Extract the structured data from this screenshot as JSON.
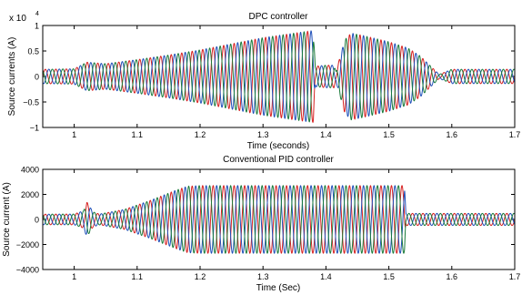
{
  "chart_data": [
    {
      "type": "line",
      "title": "DPC controller",
      "xlabel": "Time (seconds)",
      "ylabel": "Source currents (A)",
      "y_multiplier_label": "x 10",
      "y_multiplier_exp": "4",
      "xlim": [
        0.95,
        1.7
      ],
      "ylim": [
        -1,
        1
      ],
      "x_ticks": [
        1,
        1.1,
        1.2,
        1.3,
        1.4,
        1.5,
        1.6,
        1.7
      ],
      "x_tick_labels": [
        "1",
        "1.1",
        "1.2",
        "1.3",
        "1.4",
        "1.5",
        "1.6",
        "1.7"
      ],
      "y_ticks": [
        -1,
        -0.5,
        0,
        0.5,
        1
      ],
      "y_tick_labels": [
        "−1",
        "−0.5",
        "0",
        "0.5",
        "1"
      ],
      "frequency_hz": 60,
      "series_colors": [
        "#d62020",
        "#1f4fb8",
        "#1a7a3a"
      ],
      "envelope": {
        "t": [
          0.95,
          1.0,
          1.02,
          1.05,
          1.1,
          1.15,
          1.2,
          1.25,
          1.3,
          1.35,
          1.38,
          1.383,
          1.4,
          1.413,
          1.416,
          1.43,
          1.44,
          1.46,
          1.5,
          1.53,
          1.55,
          1.57,
          1.58,
          1.6,
          1.7
        ],
        "amp": [
          0.14,
          0.15,
          0.28,
          0.25,
          0.33,
          0.42,
          0.52,
          0.64,
          0.76,
          0.85,
          0.9,
          0.2,
          0.22,
          0.22,
          0.1,
          0.72,
          0.85,
          0.8,
          0.68,
          0.56,
          0.4,
          0.16,
          0.04,
          0.14,
          0.14
        ]
      }
    },
    {
      "type": "line",
      "title": "Conventional PID controller",
      "xlabel": "Time (Sec)",
      "ylabel": "Source current (A)",
      "xlim": [
        0.95,
        1.7
      ],
      "ylim": [
        -4000,
        4000
      ],
      "x_ticks": [
        1,
        1.1,
        1.2,
        1.3,
        1.4,
        1.5,
        1.6,
        1.7
      ],
      "x_tick_labels": [
        "1",
        "1.1",
        "1.2",
        "1.3",
        "1.4",
        "1.5",
        "1.6",
        "1.7"
      ],
      "y_ticks": [
        -4000,
        -2000,
        0,
        2000,
        4000
      ],
      "y_tick_labels": [
        "−4000",
        "−2000",
        "0",
        "2000",
        "4000"
      ],
      "frequency_hz": 60,
      "series_colors": [
        "#d62020",
        "#1f4fb8",
        "#1a7a3a"
      ],
      "envelope": {
        "t": [
          0.95,
          1.0,
          1.015,
          1.02,
          1.03,
          1.04,
          1.08,
          1.12,
          1.16,
          1.18,
          1.2,
          1.3,
          1.4,
          1.5,
          1.525,
          1.527,
          1.6,
          1.7
        ],
        "amp": [
          420,
          430,
          700,
          1400,
          600,
          430,
          800,
          1500,
          2300,
          2650,
          2700,
          2700,
          2700,
          2700,
          2700,
          480,
          480,
          480
        ]
      }
    }
  ]
}
